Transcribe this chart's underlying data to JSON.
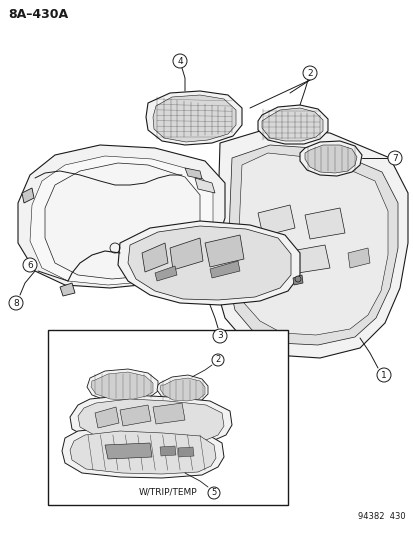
{
  "title": "8A–430A",
  "footer_code": "94382  430",
  "bg": "#ffffff",
  "lc": "#1a1a1a",
  "inset_label": "W/TRIP/TEMP",
  "fig_width": 4.14,
  "fig_height": 5.33,
  "lw": 0.8,
  "fill_light": "#f2f2f2",
  "fill_mid": "#e0e0e0",
  "fill_dark": "#c8c8c8",
  "fill_hatch": "#b0b0b0"
}
